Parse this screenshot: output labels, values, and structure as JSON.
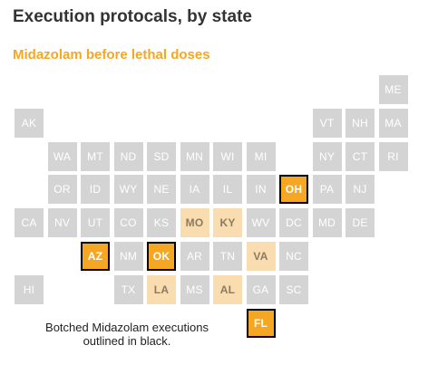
{
  "title": "Execution protocals, by state",
  "subtitle": "Midazolam before lethal doses",
  "note": "Botched Midazolam executions outlined in black.",
  "colors": {
    "none_bg": "#d4d4d4",
    "none_text": "#ffffff",
    "used_bg": "#f9dcb0",
    "used_text": "#8c7a62",
    "botched_bg": "#f5a623",
    "botched_text": "#ffffff",
    "subtitle": "#f5a623"
  },
  "states": [
    {
      "abbr": "ME",
      "col": 11,
      "row": 0,
      "status": "none"
    },
    {
      "abbr": "AK",
      "col": 0,
      "row": 1,
      "status": "none"
    },
    {
      "abbr": "VT",
      "col": 9,
      "row": 1,
      "status": "none"
    },
    {
      "abbr": "NH",
      "col": 10,
      "row": 1,
      "status": "none"
    },
    {
      "abbr": "MA",
      "col": 11,
      "row": 1,
      "status": "none"
    },
    {
      "abbr": "WA",
      "col": 1,
      "row": 2,
      "status": "none"
    },
    {
      "abbr": "MT",
      "col": 2,
      "row": 2,
      "status": "none"
    },
    {
      "abbr": "ND",
      "col": 3,
      "row": 2,
      "status": "none"
    },
    {
      "abbr": "SD",
      "col": 4,
      "row": 2,
      "status": "none"
    },
    {
      "abbr": "MN",
      "col": 5,
      "row": 2,
      "status": "none"
    },
    {
      "abbr": "WI",
      "col": 6,
      "row": 2,
      "status": "none"
    },
    {
      "abbr": "MI",
      "col": 7,
      "row": 2,
      "status": "none"
    },
    {
      "abbr": "NY",
      "col": 9,
      "row": 2,
      "status": "none"
    },
    {
      "abbr": "CT",
      "col": 10,
      "row": 2,
      "status": "none"
    },
    {
      "abbr": "RI",
      "col": 11,
      "row": 2,
      "status": "none"
    },
    {
      "abbr": "OR",
      "col": 1,
      "row": 3,
      "status": "none"
    },
    {
      "abbr": "ID",
      "col": 2,
      "row": 3,
      "status": "none"
    },
    {
      "abbr": "WY",
      "col": 3,
      "row": 3,
      "status": "none"
    },
    {
      "abbr": "NE",
      "col": 4,
      "row": 3,
      "status": "none"
    },
    {
      "abbr": "IA",
      "col": 5,
      "row": 3,
      "status": "none"
    },
    {
      "abbr": "IL",
      "col": 6,
      "row": 3,
      "status": "none"
    },
    {
      "abbr": "IN",
      "col": 7,
      "row": 3,
      "status": "none"
    },
    {
      "abbr": "OH",
      "col": 8,
      "row": 3,
      "status": "botched"
    },
    {
      "abbr": "PA",
      "col": 9,
      "row": 3,
      "status": "none"
    },
    {
      "abbr": "NJ",
      "col": 10,
      "row": 3,
      "status": "none"
    },
    {
      "abbr": "CA",
      "col": 0,
      "row": 4,
      "status": "none"
    },
    {
      "abbr": "NV",
      "col": 1,
      "row": 4,
      "status": "none"
    },
    {
      "abbr": "UT",
      "col": 2,
      "row": 4,
      "status": "none"
    },
    {
      "abbr": "CO",
      "col": 3,
      "row": 4,
      "status": "none"
    },
    {
      "abbr": "KS",
      "col": 4,
      "row": 4,
      "status": "none"
    },
    {
      "abbr": "MO",
      "col": 5,
      "row": 4,
      "status": "used"
    },
    {
      "abbr": "KY",
      "col": 6,
      "row": 4,
      "status": "used"
    },
    {
      "abbr": "WV",
      "col": 7,
      "row": 4,
      "status": "none"
    },
    {
      "abbr": "DC",
      "col": 8,
      "row": 4,
      "status": "none"
    },
    {
      "abbr": "MD",
      "col": 9,
      "row": 4,
      "status": "none"
    },
    {
      "abbr": "DE",
      "col": 10,
      "row": 4,
      "status": "none"
    },
    {
      "abbr": "AZ",
      "col": 2,
      "row": 5,
      "status": "botched"
    },
    {
      "abbr": "NM",
      "col": 3,
      "row": 5,
      "status": "none"
    },
    {
      "abbr": "OK",
      "col": 4,
      "row": 5,
      "status": "botched"
    },
    {
      "abbr": "AR",
      "col": 5,
      "row": 5,
      "status": "none"
    },
    {
      "abbr": "TN",
      "col": 6,
      "row": 5,
      "status": "none"
    },
    {
      "abbr": "VA",
      "col": 7,
      "row": 5,
      "status": "used"
    },
    {
      "abbr": "NC",
      "col": 8,
      "row": 5,
      "status": "none"
    },
    {
      "abbr": "HI",
      "col": 0,
      "row": 6,
      "status": "none"
    },
    {
      "abbr": "TX",
      "col": 3,
      "row": 6,
      "status": "none"
    },
    {
      "abbr": "LA",
      "col": 4,
      "row": 6,
      "status": "used"
    },
    {
      "abbr": "MS",
      "col": 5,
      "row": 6,
      "status": "none"
    },
    {
      "abbr": "AL",
      "col": 6,
      "row": 6,
      "status": "used"
    },
    {
      "abbr": "GA",
      "col": 7,
      "row": 6,
      "status": "none"
    },
    {
      "abbr": "SC",
      "col": 8,
      "row": 6,
      "status": "none"
    },
    {
      "abbr": "FL",
      "col": 7,
      "row": 7,
      "status": "botched"
    }
  ]
}
